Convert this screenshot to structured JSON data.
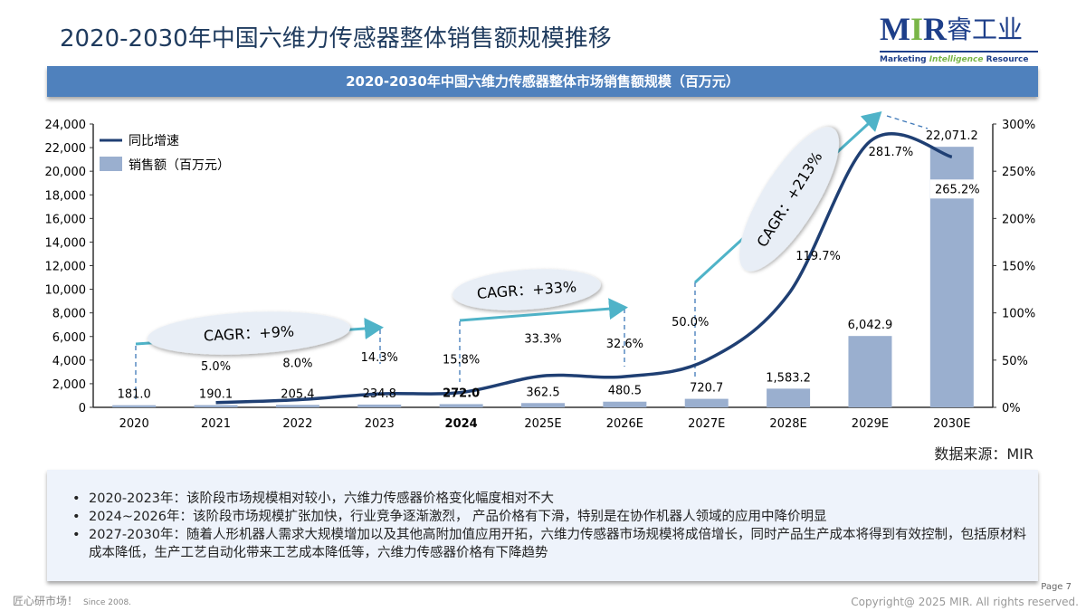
{
  "title": "2020-2030年中国六维力传感器整体销售额规模推移",
  "logo": {
    "mark_m": "M",
    "mark_i": "I",
    "mark_r": "R",
    "cn": "睿工业",
    "sub_a": "Marketing ",
    "sub_b": "Intelligence",
    "sub_c": " Resource"
  },
  "source": "数据来源：MIR",
  "notes": [
    "2020-2023年：该阶段市场规模相对较小，六维力传感器价格变化幅度相对不大",
    "2024~2026年：该阶段市场规模扩张加快，行业竞争逐渐激烈， 产品价格有下滑，特别是在协作机器人领域的应用中降价明显",
    "2027-2030年：随着人形机器人需求大规模增加以及其他高附加值应用开拓，六维力传感器市场规模将成倍增长，同时产品生产成本将得到有效控制，包括原材料成本降低，生产工艺自动化带来工艺成本降低等，六维力传感器价格有下降趋势"
  ],
  "footer": {
    "slogan": "匠心研市场！",
    "since": "Since 2008.",
    "page": "Page 7",
    "copyright": "Copyright@ 2025 MIR. All rights reserved."
  },
  "colors": {
    "bar": "#9aafcf",
    "line": "#1f3f73",
    "arrow": "#4fb3c8",
    "banner": "#4f81bd"
  },
  "chart_data": {
    "type": "bar",
    "title": "2020-2030年中国六维力传感器整体市场销售额规模（百万元）",
    "categories": [
      "2020",
      "2021",
      "2022",
      "2023",
      "2024",
      "2025E",
      "2026E",
      "2027E",
      "2028E",
      "2029E",
      "2030E"
    ],
    "series": [
      {
        "name": "销售额（百万元）",
        "type": "bar",
        "axis": "left",
        "values": [
          181.0,
          190.1,
          205.4,
          234.8,
          272.0,
          362.5,
          480.5,
          720.7,
          1583.2,
          6042.9,
          22071.2
        ],
        "labels": [
          "181.0",
          "190.1",
          "205.4",
          "234.8",
          "272.0",
          "362.5",
          "480.5",
          "720.7",
          "1,583.2",
          "6,042.9",
          "22,071.2"
        ]
      },
      {
        "name": "同比增速",
        "type": "line",
        "axis": "right",
        "values": [
          null,
          5.0,
          8.0,
          14.3,
          15.8,
          33.3,
          32.6,
          50.0,
          119.7,
          281.7,
          265.2
        ],
        "labels": [
          "",
          "5.0%",
          "8.0%",
          "14.3%",
          "15.8%",
          "33.3%",
          "32.6%",
          "50.0%",
          "119.7%",
          "281.7%",
          "265.2%"
        ]
      }
    ],
    "left_axis": {
      "min": 0,
      "max": 24000,
      "step": 2000,
      "ticks": [
        "0",
        "2,000",
        "4,000",
        "6,000",
        "8,000",
        "10,000",
        "12,000",
        "14,000",
        "16,000",
        "18,000",
        "20,000",
        "22,000",
        "24,000"
      ]
    },
    "right_axis": {
      "min": 0,
      "max": 300,
      "step": 50,
      "ticks": [
        "0%",
        "50%",
        "100%",
        "150%",
        "200%",
        "250%",
        "300%"
      ]
    },
    "legend": {
      "position": "top-left",
      "items": [
        "同比增速",
        "销售额（百万元）"
      ]
    },
    "annotations": [
      "CAGR：+9%",
      "CAGR：+33%",
      "CAGR：+213%"
    ]
  }
}
